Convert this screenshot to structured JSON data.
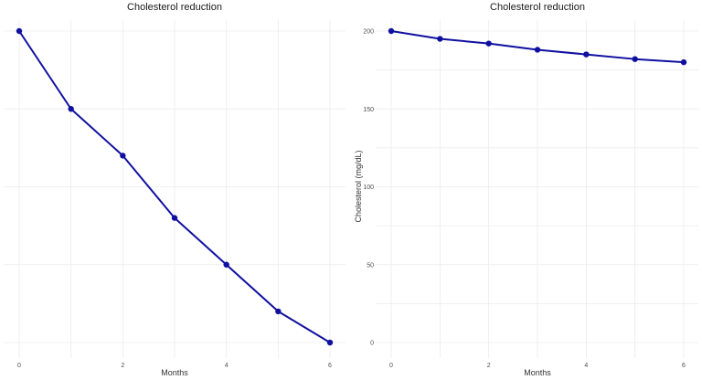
{
  "chart_data": [
    {
      "type": "line",
      "title": "Cholesterol reduction",
      "xlabel": "Months",
      "ylabel": "",
      "x": [
        0,
        1,
        2,
        3,
        4,
        5,
        6
      ],
      "series": [
        {
          "values": [
            200,
            195,
            192,
            188,
            185,
            182,
            180
          ]
        }
      ],
      "xlim": [
        0,
        6
      ],
      "ylim": [
        180,
        200
      ],
      "xticks": [
        "0",
        "2",
        "4",
        "6"
      ],
      "yticks": [],
      "grid": true,
      "legend": "none",
      "color": "#1010a0"
    },
    {
      "type": "line",
      "title": "Cholesterol reduction",
      "xlabel": "Months",
      "ylabel": "Cholesterol (mg/dL)",
      "x": [
        0,
        1,
        2,
        3,
        4,
        5,
        6
      ],
      "series": [
        {
          "values": [
            200,
            195,
            192,
            188,
            185,
            182,
            180
          ]
        }
      ],
      "xlim": [
        0,
        6
      ],
      "ylim": [
        0,
        200
      ],
      "xticks": [
        "0",
        "2",
        "4",
        "6"
      ],
      "yticks": [
        "0",
        "50",
        "100",
        "150",
        "200"
      ],
      "grid": true,
      "legend": "none",
      "color": "#1010a0"
    }
  ]
}
